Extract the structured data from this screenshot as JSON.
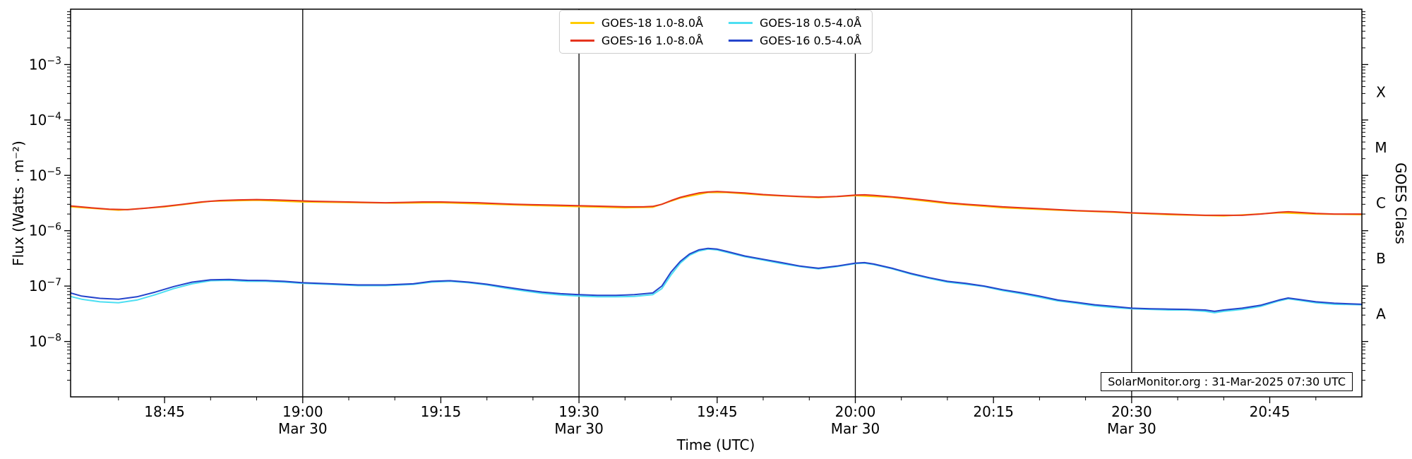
{
  "annotation": "SolarMonitor.org : 31-Mar-2025 07:30 UTC",
  "axes": {
    "xlabel": "Time (UTC)",
    "ylabel_left": "Flux (Watts · m⁻²)",
    "ylabel_right": "GOES Class"
  },
  "chart_data": {
    "type": "line",
    "x_unit": "minutes after 18:00 UTC on Mar 30",
    "xlim": [
      34.8,
      175
    ],
    "ylim_log10": [
      -9,
      -2
    ],
    "vlines": [
      60,
      90,
      120,
      150
    ],
    "xticks": [
      {
        "t": 45,
        "label": "18:45"
      },
      {
        "t": 60,
        "label": "19:00",
        "sub": "Mar 30"
      },
      {
        "t": 75,
        "label": "19:15"
      },
      {
        "t": 90,
        "label": "19:30",
        "sub": "Mar 30"
      },
      {
        "t": 105,
        "label": "19:45"
      },
      {
        "t": 120,
        "label": "20:00",
        "sub": "Mar 30"
      },
      {
        "t": 135,
        "label": "20:15"
      },
      {
        "t": 150,
        "label": "20:30",
        "sub": "Mar 30"
      },
      {
        "t": 165,
        "label": "20:45"
      }
    ],
    "yticks": [
      {
        "log10": -3,
        "label_base": "10",
        "label_exp": "−3"
      },
      {
        "log10": -4,
        "label_base": "10",
        "label_exp": "−4"
      },
      {
        "log10": -5,
        "label_base": "10",
        "label_exp": "−5"
      },
      {
        "log10": -6,
        "label_base": "10",
        "label_exp": "−6"
      },
      {
        "log10": -7,
        "label_base": "10",
        "label_exp": "−7"
      },
      {
        "log10": -8,
        "label_base": "10",
        "label_exp": "−8"
      }
    ],
    "goes_classes": [
      {
        "label": "X",
        "log10": -3.5
      },
      {
        "label": "M",
        "log10": -4.5
      },
      {
        "label": "C",
        "log10": -5.5
      },
      {
        "label": "B",
        "log10": -6.5
      },
      {
        "label": "A",
        "log10": -7.5
      }
    ],
    "series": [
      {
        "name": "GOES-18 1.0-8.0Å",
        "color": "#ffcc00",
        "points": [
          [
            34.8,
            2.7e-06
          ],
          [
            40,
            2.35e-06
          ],
          [
            45,
            2.7e-06
          ],
          [
            50,
            3.4e-06
          ],
          [
            55,
            3.55e-06
          ],
          [
            60,
            3.3e-06
          ],
          [
            70,
            3.15e-06
          ],
          [
            75,
            3.2e-06
          ],
          [
            85,
            2.85e-06
          ],
          [
            95,
            2.6e-06
          ],
          [
            98,
            2.65e-06
          ],
          [
            101,
            3.9e-06
          ],
          [
            104,
            4.9e-06
          ],
          [
            106,
            4.9e-06
          ],
          [
            110,
            4.4e-06
          ],
          [
            116,
            3.95e-06
          ],
          [
            120,
            4.3e-06
          ],
          [
            124,
            4e-06
          ],
          [
            130,
            3.1e-06
          ],
          [
            136,
            2.6e-06
          ],
          [
            142,
            2.35e-06
          ],
          [
            148,
            2.15e-06
          ],
          [
            154,
            1.95e-06
          ],
          [
            160,
            1.85e-06
          ],
          [
            166,
            2.1e-06
          ],
          [
            170,
            2e-06
          ],
          [
            175,
            1.95e-06
          ]
        ]
      },
      {
        "name": "GOES-16 1.0-8.0Å",
        "color": "#e5341e",
        "points": [
          [
            34.8,
            2.8e-06
          ],
          [
            37,
            2.6e-06
          ],
          [
            39,
            2.45e-06
          ],
          [
            41,
            2.4e-06
          ],
          [
            43,
            2.55e-06
          ],
          [
            45,
            2.75e-06
          ],
          [
            47,
            3e-06
          ],
          [
            49,
            3.3e-06
          ],
          [
            51,
            3.5e-06
          ],
          [
            53,
            3.6e-06
          ],
          [
            55,
            3.65e-06
          ],
          [
            57,
            3.6e-06
          ],
          [
            59,
            3.5e-06
          ],
          [
            61,
            3.4e-06
          ],
          [
            63,
            3.35e-06
          ],
          [
            65,
            3.3e-06
          ],
          [
            67,
            3.25e-06
          ],
          [
            69,
            3.2e-06
          ],
          [
            71,
            3.25e-06
          ],
          [
            73,
            3.3e-06
          ],
          [
            75,
            3.3e-06
          ],
          [
            77,
            3.25e-06
          ],
          [
            79,
            3.2e-06
          ],
          [
            81,
            3.1e-06
          ],
          [
            83,
            3e-06
          ],
          [
            85,
            2.95e-06
          ],
          [
            87,
            2.9e-06
          ],
          [
            89,
            2.85e-06
          ],
          [
            91,
            2.8e-06
          ],
          [
            93,
            2.75e-06
          ],
          [
            95,
            2.7e-06
          ],
          [
            97,
            2.7e-06
          ],
          [
            98,
            2.75e-06
          ],
          [
            99,
            3e-06
          ],
          [
            100,
            3.5e-06
          ],
          [
            101,
            4e-06
          ],
          [
            102,
            4.4e-06
          ],
          [
            103,
            4.8e-06
          ],
          [
            104,
            5e-06
          ],
          [
            105,
            5.1e-06
          ],
          [
            106,
            5e-06
          ],
          [
            107,
            4.9e-06
          ],
          [
            108,
            4.8e-06
          ],
          [
            110,
            4.5e-06
          ],
          [
            112,
            4.3e-06
          ],
          [
            114,
            4.15e-06
          ],
          [
            116,
            4.05e-06
          ],
          [
            118,
            4.15e-06
          ],
          [
            120,
            4.4e-06
          ],
          [
            121,
            4.45e-06
          ],
          [
            122,
            4.35e-06
          ],
          [
            124,
            4.1e-06
          ],
          [
            126,
            3.8e-06
          ],
          [
            128,
            3.5e-06
          ],
          [
            130,
            3.2e-06
          ],
          [
            132,
            3e-06
          ],
          [
            134,
            2.85e-06
          ],
          [
            136,
            2.7e-06
          ],
          [
            138,
            2.6e-06
          ],
          [
            140,
            2.5e-06
          ],
          [
            142,
            2.4e-06
          ],
          [
            144,
            2.3e-06
          ],
          [
            146,
            2.25e-06
          ],
          [
            148,
            2.2e-06
          ],
          [
            150,
            2.1e-06
          ],
          [
            152,
            2.05e-06
          ],
          [
            154,
            2e-06
          ],
          [
            156,
            1.95e-06
          ],
          [
            158,
            1.9e-06
          ],
          [
            160,
            1.9e-06
          ],
          [
            162,
            1.9e-06
          ],
          [
            164,
            2e-06
          ],
          [
            166,
            2.15e-06
          ],
          [
            167,
            2.2e-06
          ],
          [
            168,
            2.15e-06
          ],
          [
            170,
            2.05e-06
          ],
          [
            172,
            2e-06
          ],
          [
            175,
            2e-06
          ]
        ]
      },
      {
        "name": "GOES-18 0.5-4.0Å",
        "color": "#4ddff2",
        "points": [
          [
            34.8,
            6.5e-08
          ],
          [
            36,
            5.8e-08
          ],
          [
            38,
            5.2e-08
          ],
          [
            40,
            5e-08
          ],
          [
            42,
            5.6e-08
          ],
          [
            44,
            7e-08
          ],
          [
            46,
            9e-08
          ],
          [
            48,
            1.1e-07
          ],
          [
            50,
            1.25e-07
          ],
          [
            52,
            1.27e-07
          ],
          [
            54,
            1.22e-07
          ],
          [
            56,
            1.22e-07
          ],
          [
            58,
            1.18e-07
          ],
          [
            60,
            1.12e-07
          ],
          [
            63,
            1.07e-07
          ],
          [
            66,
            1.02e-07
          ],
          [
            69,
            1.02e-07
          ],
          [
            72,
            1.07e-07
          ],
          [
            74,
            1.18e-07
          ],
          [
            76,
            1.22e-07
          ],
          [
            78,
            1.15e-07
          ],
          [
            80,
            1.05e-07
          ],
          [
            82,
            9.2e-08
          ],
          [
            84,
            8.2e-08
          ],
          [
            86,
            7.4e-08
          ],
          [
            88,
            6.9e-08
          ],
          [
            90,
            6.6e-08
          ],
          [
            92,
            6.4e-08
          ],
          [
            94,
            6.4e-08
          ],
          [
            96,
            6.5e-08
          ],
          [
            98,
            7e-08
          ],
          [
            99,
            9e-08
          ],
          [
            100,
            1.6e-07
          ],
          [
            101,
            2.6e-07
          ],
          [
            102,
            3.6e-07
          ],
          [
            103,
            4.3e-07
          ],
          [
            104,
            4.65e-07
          ],
          [
            105,
            4.5e-07
          ],
          [
            106,
            4.1e-07
          ],
          [
            108,
            3.4e-07
          ],
          [
            110,
            2.95e-07
          ],
          [
            112,
            2.55e-07
          ],
          [
            114,
            2.25e-07
          ],
          [
            116,
            2.05e-07
          ],
          [
            118,
            2.25e-07
          ],
          [
            120,
            2.55e-07
          ],
          [
            121,
            2.6e-07
          ],
          [
            122,
            2.45e-07
          ],
          [
            124,
            2.05e-07
          ],
          [
            126,
            1.65e-07
          ],
          [
            128,
            1.38e-07
          ],
          [
            130,
            1.18e-07
          ],
          [
            132,
            1.08e-07
          ],
          [
            134,
            9.8e-08
          ],
          [
            136,
            8.3e-08
          ],
          [
            138,
            7.3e-08
          ],
          [
            140,
            6.3e-08
          ],
          [
            142,
            5.4e-08
          ],
          [
            144,
            4.9e-08
          ],
          [
            146,
            4.4e-08
          ],
          [
            148,
            4.1e-08
          ],
          [
            150,
            3.9e-08
          ],
          [
            152,
            3.8e-08
          ],
          [
            154,
            3.7e-08
          ],
          [
            156,
            3.7e-08
          ],
          [
            158,
            3.5e-08
          ],
          [
            159,
            3.3e-08
          ],
          [
            160,
            3.5e-08
          ],
          [
            162,
            3.8e-08
          ],
          [
            164,
            4.3e-08
          ],
          [
            166,
            5.4e-08
          ],
          [
            167,
            5.9e-08
          ],
          [
            168,
            5.6e-08
          ],
          [
            170,
            5e-08
          ],
          [
            172,
            4.7e-08
          ],
          [
            175,
            4.6e-08
          ]
        ]
      },
      {
        "name": "GOES-16 0.5-4.0Å",
        "color": "#2545cc",
        "points": [
          [
            34.8,
            7.5e-08
          ],
          [
            36,
            6.6e-08
          ],
          [
            38,
            6e-08
          ],
          [
            40,
            5.8e-08
          ],
          [
            42,
            6.4e-08
          ],
          [
            44,
            7.8e-08
          ],
          [
            46,
            9.8e-08
          ],
          [
            48,
            1.18e-07
          ],
          [
            50,
            1.3e-07
          ],
          [
            52,
            1.32e-07
          ],
          [
            54,
            1.27e-07
          ],
          [
            56,
            1.26e-07
          ],
          [
            58,
            1.22e-07
          ],
          [
            60,
            1.15e-07
          ],
          [
            63,
            1.1e-07
          ],
          [
            66,
            1.05e-07
          ],
          [
            69,
            1.05e-07
          ],
          [
            72,
            1.1e-07
          ],
          [
            74,
            1.22e-07
          ],
          [
            76,
            1.25e-07
          ],
          [
            78,
            1.18e-07
          ],
          [
            80,
            1.08e-07
          ],
          [
            82,
            9.6e-08
          ],
          [
            84,
            8.6e-08
          ],
          [
            86,
            7.8e-08
          ],
          [
            88,
            7.3e-08
          ],
          [
            90,
            7e-08
          ],
          [
            92,
            6.8e-08
          ],
          [
            94,
            6.8e-08
          ],
          [
            96,
            7e-08
          ],
          [
            98,
            7.5e-08
          ],
          [
            99,
            1e-07
          ],
          [
            100,
            1.8e-07
          ],
          [
            101,
            2.8e-07
          ],
          [
            102,
            3.8e-07
          ],
          [
            103,
            4.5e-07
          ],
          [
            104,
            4.8e-07
          ],
          [
            105,
            4.65e-07
          ],
          [
            106,
            4.25e-07
          ],
          [
            108,
            3.5e-07
          ],
          [
            110,
            3.05e-07
          ],
          [
            112,
            2.65e-07
          ],
          [
            114,
            2.3e-07
          ],
          [
            116,
            2.1e-07
          ],
          [
            118,
            2.3e-07
          ],
          [
            120,
            2.6e-07
          ],
          [
            121,
            2.65e-07
          ],
          [
            122,
            2.5e-07
          ],
          [
            124,
            2.1e-07
          ],
          [
            126,
            1.7e-07
          ],
          [
            128,
            1.42e-07
          ],
          [
            130,
            1.22e-07
          ],
          [
            132,
            1.12e-07
          ],
          [
            134,
            1e-07
          ],
          [
            136,
            8.6e-08
          ],
          [
            138,
            7.6e-08
          ],
          [
            140,
            6.6e-08
          ],
          [
            142,
            5.6e-08
          ],
          [
            144,
            5.1e-08
          ],
          [
            146,
            4.6e-08
          ],
          [
            148,
            4.3e-08
          ],
          [
            150,
            4e-08
          ],
          [
            152,
            3.9e-08
          ],
          [
            154,
            3.85e-08
          ],
          [
            156,
            3.8e-08
          ],
          [
            158,
            3.7e-08
          ],
          [
            159,
            3.5e-08
          ],
          [
            160,
            3.7e-08
          ],
          [
            162,
            4e-08
          ],
          [
            164,
            4.5e-08
          ],
          [
            166,
            5.6e-08
          ],
          [
            167,
            6.1e-08
          ],
          [
            168,
            5.8e-08
          ],
          [
            170,
            5.2e-08
          ],
          [
            172,
            4.9e-08
          ],
          [
            175,
            4.7e-08
          ]
        ]
      }
    ]
  }
}
